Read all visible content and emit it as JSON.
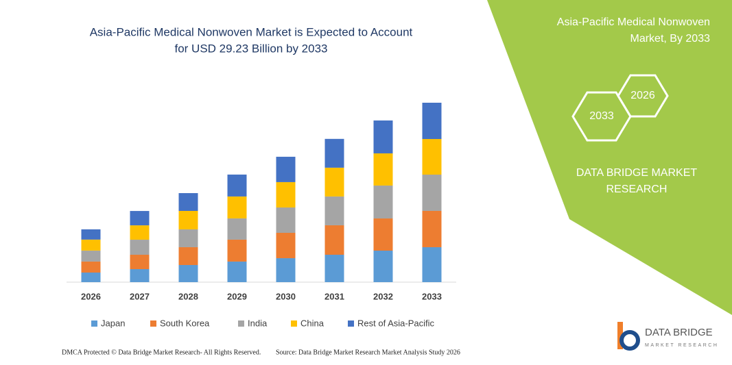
{
  "chart_data": {
    "type": "bar",
    "stacked": true,
    "title": [
      "Asia-Pacific Medical Nonwoven Market is Expected to Account",
      "for USD 29.23 Billion by 2033"
    ],
    "categories": [
      "2026",
      "2027",
      "2028",
      "2029",
      "2030",
      "2031",
      "2032",
      "2033"
    ],
    "series": [
      {
        "name": "Japan",
        "color": "#5b9bd5",
        "values": [
          1.56,
          2.12,
          2.79,
          3.35,
          3.9,
          4.46,
          5.13,
          5.69
        ]
      },
      {
        "name": "South Korea",
        "color": "#ed7d31",
        "values": [
          1.79,
          2.34,
          2.9,
          3.57,
          4.13,
          4.8,
          5.24,
          5.91
        ]
      },
      {
        "name": "India",
        "color": "#a5a5a5",
        "values": [
          1.79,
          2.45,
          2.9,
          3.46,
          4.13,
          4.69,
          5.36,
          5.91
        ]
      },
      {
        "name": "China",
        "color": "#ffc000",
        "values": [
          1.79,
          2.34,
          3.01,
          3.57,
          4.13,
          4.69,
          5.24,
          5.8
        ]
      },
      {
        "name": "Rest of Asia-Pacific",
        "color": "#4472c4",
        "values": [
          1.67,
          2.34,
          2.9,
          3.57,
          4.13,
          4.69,
          5.36,
          5.91
        ]
      }
    ],
    "legend": "bottom"
  },
  "panel": {
    "title": [
      "Asia-Pacific Medical Nonwoven",
      "Market, By 2033"
    ],
    "hexagons": [
      "2026",
      "2033"
    ],
    "brand": [
      "DATA BRIDGE MARKET",
      "RESEARCH"
    ]
  },
  "logo": {
    "name": "DATA BRIDGE",
    "tagline": "MARKET RESEARCH"
  },
  "footer": {
    "left": "DMCA Protected © Data Bridge Market Research-  All Rights Reserved.",
    "right": "Source: Data Bridge Market Research  Market Analysis Study 2026"
  }
}
